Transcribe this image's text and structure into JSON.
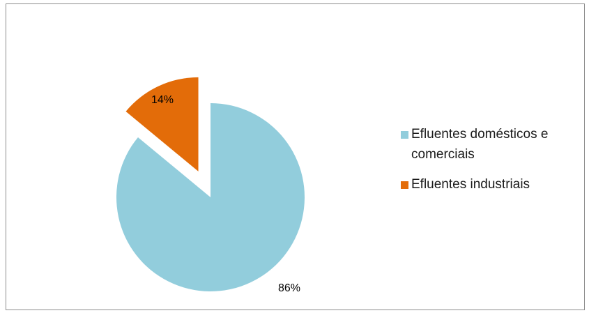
{
  "chart_data": {
    "type": "pie",
    "title": "",
    "categories": [
      "Efluentes domésticos e comerciais",
      "Efluentes industriais"
    ],
    "values": [
      86,
      14
    ],
    "data_labels": [
      "86%",
      "14%"
    ],
    "colors": [
      "#92CDDC",
      "#E36C09"
    ],
    "exploded": [
      false,
      true
    ],
    "legend_position": "right"
  },
  "legend": {
    "items": [
      {
        "label": "Efluentes domésticos e comerciais",
        "color": "#92CDDC"
      },
      {
        "label": "Efluentes industriais",
        "color": "#E36C09"
      }
    ]
  }
}
